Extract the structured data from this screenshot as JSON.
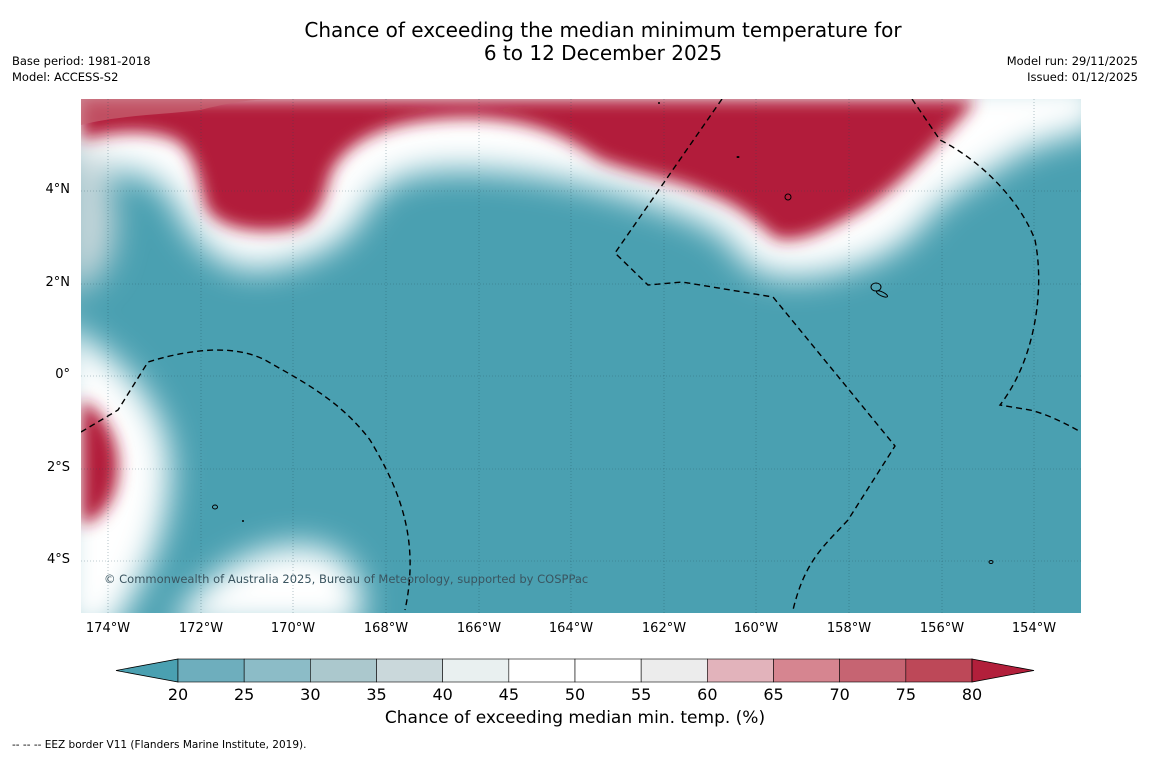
{
  "header": {
    "title_line1": "Chance of exceeding the median minimum temperature for",
    "title_line2": "6 to 12 December 2025",
    "base_period": "Base period: 1981-2018",
    "model": "Model: ACCESS-S2",
    "model_run": "Model run: 29/11/2025",
    "issued": "Issued: 01/12/2025"
  },
  "map": {
    "lat_labels": [
      "4°N",
      "2°N",
      "0°",
      "2°S",
      "4°S"
    ],
    "lon_labels": [
      "174°W",
      "172°W",
      "170°W",
      "168°W",
      "166°W",
      "164°W",
      "162°W",
      "160°W",
      "158°W",
      "156°W",
      "154°W"
    ],
    "copyright": "© Commonwealth of Australia 2025, Bureau of Meteorology, supported by COSPPac",
    "colors": {
      "below_20": "#4aa0b1",
      "above_80": "#b21f3b",
      "gridline": "#1f4a57",
      "border": "#000000"
    }
  },
  "colorbar": {
    "ticks": [
      "20",
      "25",
      "30",
      "35",
      "40",
      "45",
      "50",
      "55",
      "60",
      "65",
      "70",
      "75",
      "80"
    ],
    "colors": [
      "#4aa0b1",
      "#6eaebd",
      "#8cbcc7",
      "#abc8cd",
      "#cad8db",
      "#e9f0f0",
      "#ffffff",
      "#ffffff",
      "#ececec",
      "#e2b3bb",
      "#d68590",
      "#c66472",
      "#bd4858",
      "#b21f3b"
    ],
    "label": "Chance of exceeding median min. temp. (%)"
  },
  "footer": {
    "legend": "--  --  -- EEZ border V11 (Flanders Marine Institute, 2019)."
  }
}
